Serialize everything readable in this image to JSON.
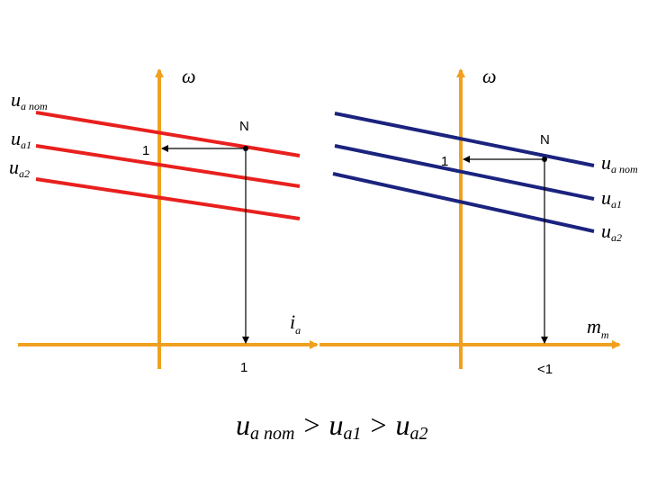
{
  "left": {
    "axis_y": "ω",
    "axis_x": {
      "main": "i",
      "sub": "a"
    },
    "point": "N",
    "y_mark": "1",
    "x_mark": "1",
    "lines": [
      {
        "main": "u",
        "sub": "a nom"
      },
      {
        "main": "u",
        "sub": "a1"
      },
      {
        "main": "u",
        "sub": "a2"
      }
    ]
  },
  "right": {
    "axis_y": "ω",
    "axis_x": {
      "main": "m",
      "sub": "m"
    },
    "point": "N",
    "y_mark": "1",
    "x_mark": "<1",
    "lines": [
      {
        "main": "u",
        "sub": "a nom"
      },
      {
        "main": "u",
        "sub": "a1"
      },
      {
        "main": "u",
        "sub": "a2"
      }
    ]
  },
  "relation": {
    "terms": [
      {
        "main": "u",
        "sub": "a nom"
      },
      {
        "main": "u",
        "sub": "a1"
      },
      {
        "main": "u",
        "sub": "a2"
      }
    ],
    "operators": [
      ">",
      ">"
    ]
  }
}
